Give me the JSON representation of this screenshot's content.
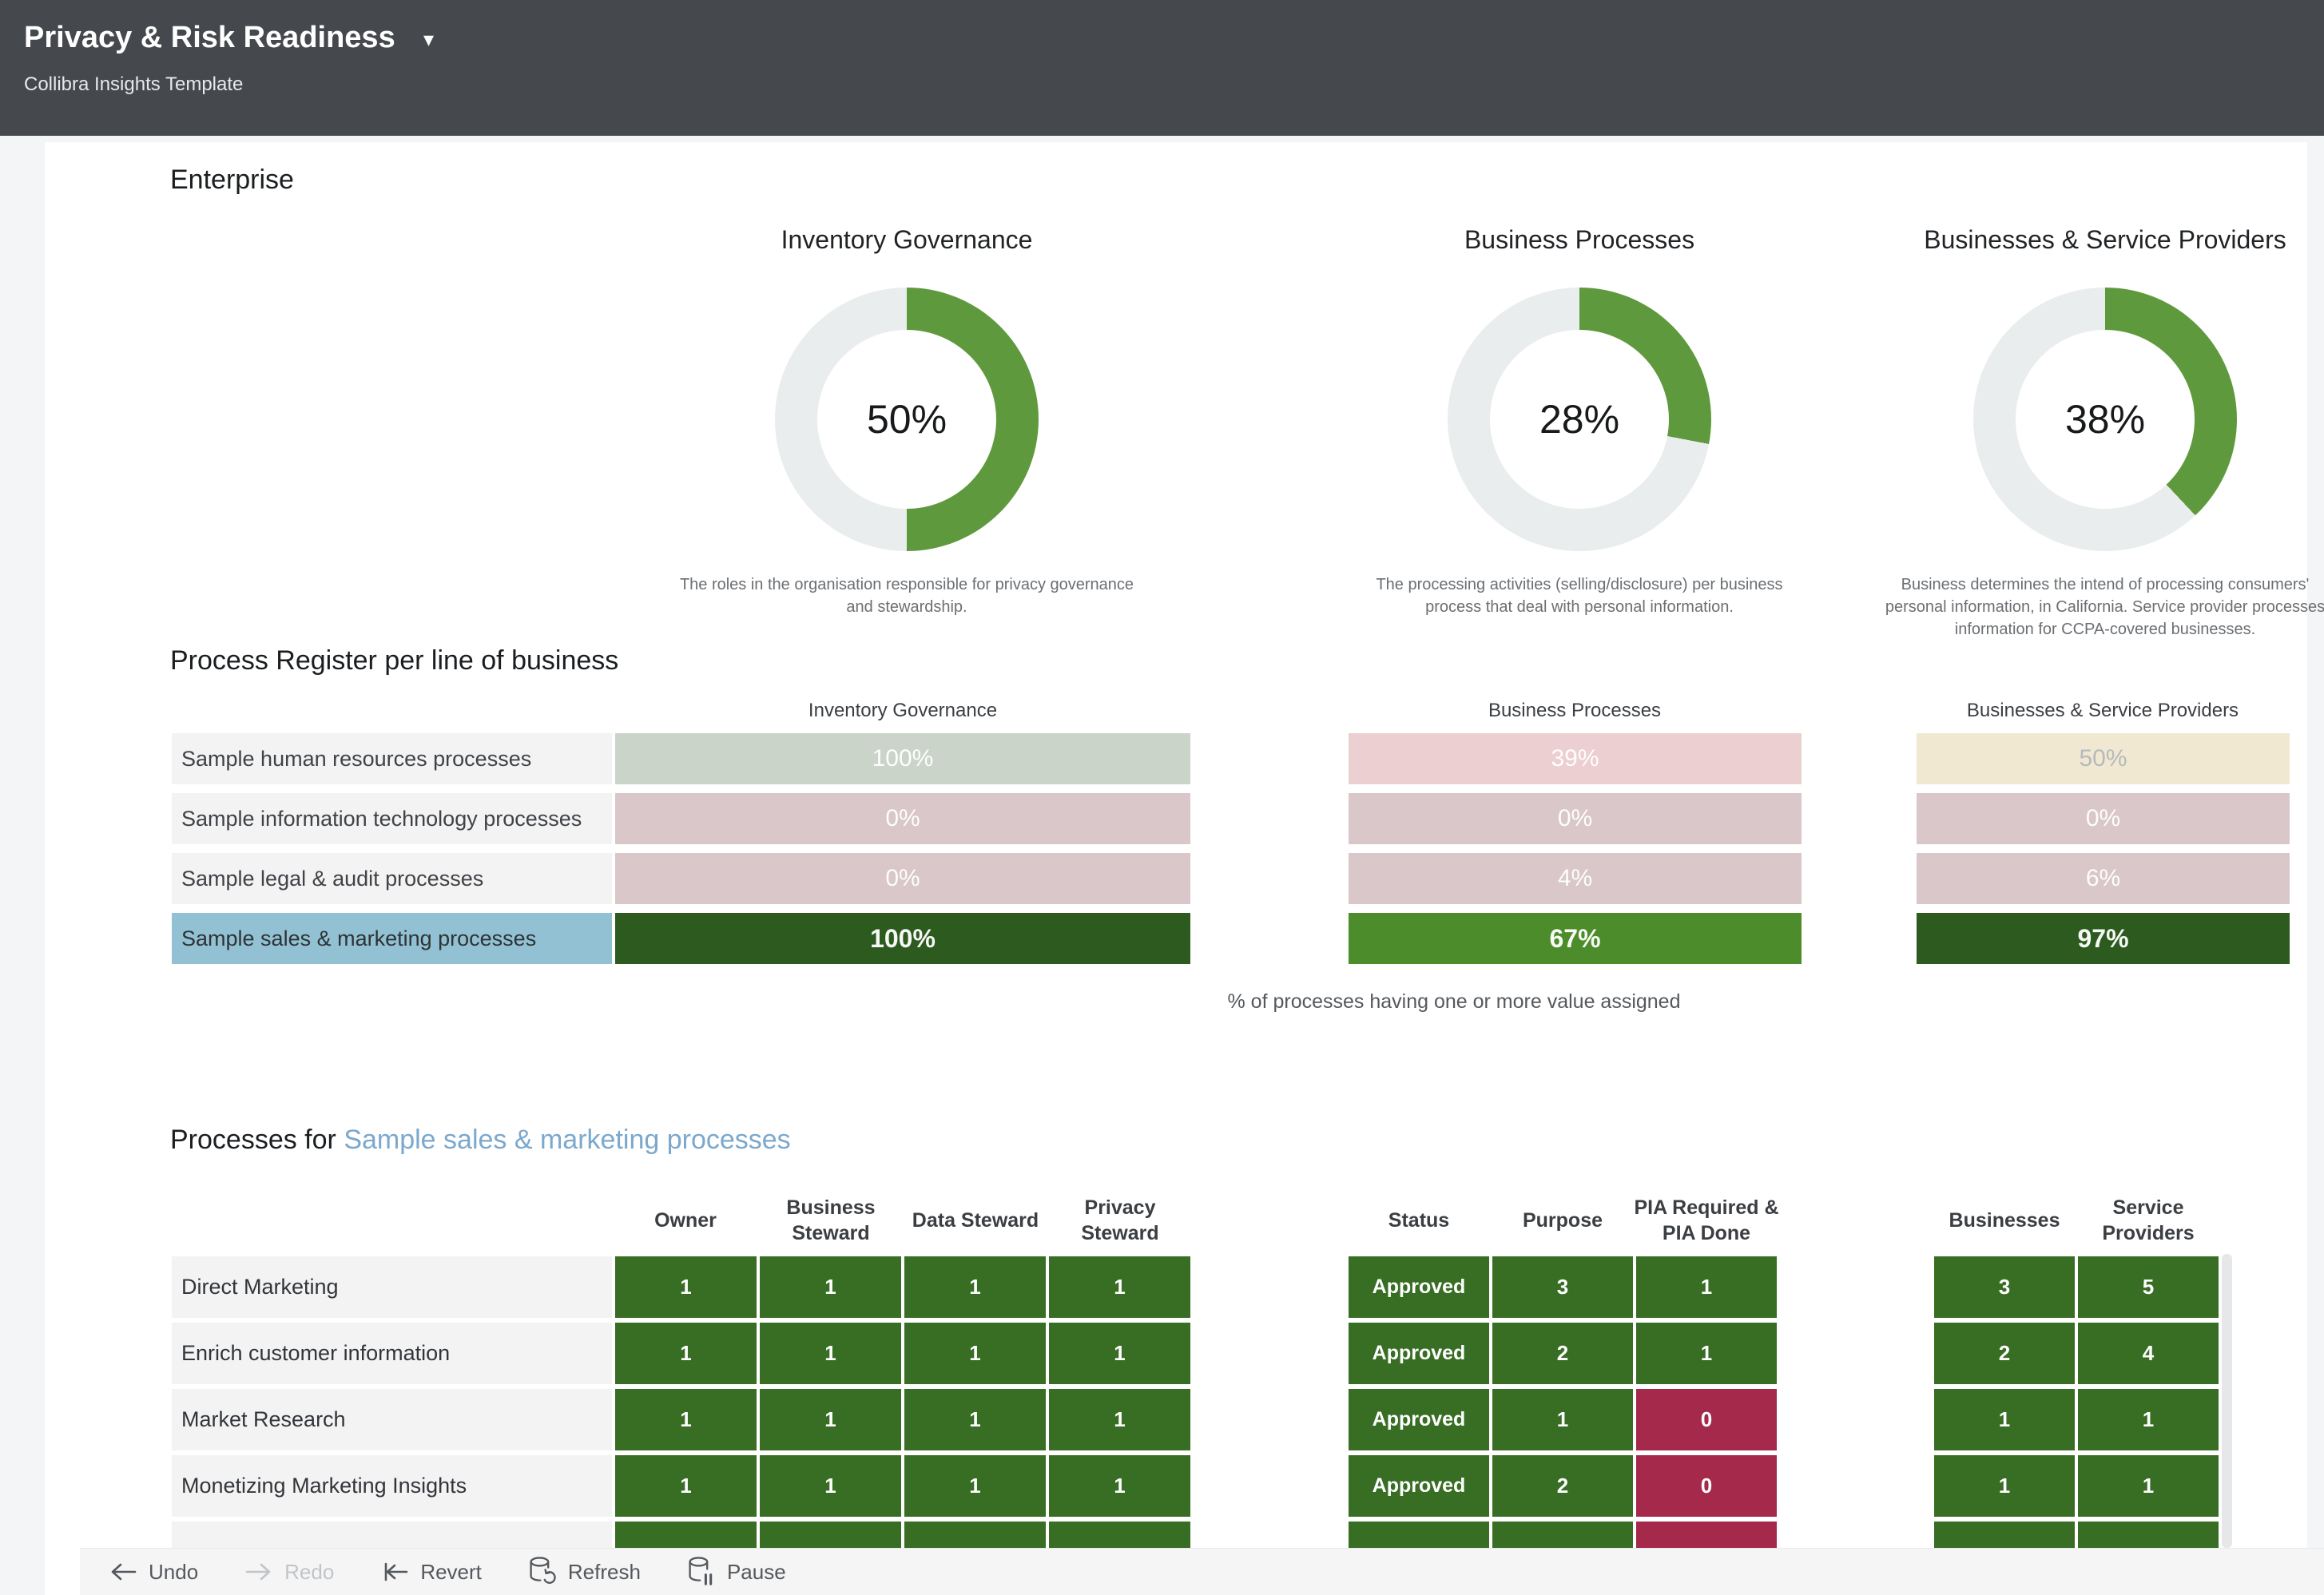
{
  "header": {
    "title": "Privacy & Risk Readiness",
    "menu_caret": "▾",
    "subtitle": "Collibra Insights Template"
  },
  "enterprise": {
    "heading": "Enterprise"
  },
  "donuts": [
    {
      "title": "Inventory Governance",
      "percent": 50,
      "percent_label": "50%",
      "description": "The roles in the organisation responsible for privacy governance and stewardship."
    },
    {
      "title": "Business Processes",
      "percent": 28,
      "percent_label": "28%",
      "description": "The processing activities (selling/disclosure) per business process that deal with personal information."
    },
    {
      "title": "Businesses & Service Providers",
      "percent": 38,
      "percent_label": "38%",
      "description": "Business determines the intend of processing consumers' personal information, in California. Service provider processes information for CCPA-covered businesses."
    }
  ],
  "process_register": {
    "heading": "Process Register per line of business",
    "columns": [
      "Inventory Governance",
      "Business Processes",
      "Businesses & Service Providers"
    ],
    "rows": [
      {
        "label": "Sample human resources processes",
        "selected": false,
        "values": [
          "100%",
          "39%",
          "50%"
        ],
        "tones": [
          "sage",
          "pink_light",
          "cream"
        ]
      },
      {
        "label": "Sample information technology processes",
        "selected": false,
        "values": [
          "0%",
          "0%",
          "0%"
        ],
        "tones": [
          "pink",
          "pink",
          "pink"
        ]
      },
      {
        "label": "Sample legal & audit processes",
        "selected": false,
        "values": [
          "0%",
          "4%",
          "6%"
        ],
        "tones": [
          "pink",
          "pink",
          "pink"
        ]
      },
      {
        "label": "Sample sales & marketing processes",
        "selected": true,
        "values": [
          "100%",
          "67%",
          "97%"
        ],
        "tones": [
          "green_dark",
          "green_bright",
          "green_dark"
        ]
      }
    ],
    "caption": "% of processes having one or more value assigned"
  },
  "processes": {
    "heading_prefix": "Processes for ",
    "heading_link": "Sample sales & marketing processes",
    "steward_columns": [
      "Owner",
      "Business Steward",
      "Data Steward",
      "Privacy Steward"
    ],
    "status_columns": [
      "Status",
      "Purpose",
      "PIA Required & PIA Done"
    ],
    "party_columns": [
      "Businesses",
      "Service Providers"
    ],
    "rows": [
      {
        "label": "Direct Marketing",
        "stewards": [
          "1",
          "1",
          "1",
          "1"
        ],
        "status": "Approved",
        "purpose": "3",
        "pia": "1",
        "pia_alert": false,
        "businesses": "3",
        "service_providers": "5",
        "partial": false
      },
      {
        "label": "Enrich customer information",
        "stewards": [
          "1",
          "1",
          "1",
          "1"
        ],
        "status": "Approved",
        "purpose": "2",
        "pia": "1",
        "pia_alert": false,
        "businesses": "2",
        "service_providers": "4",
        "partial": false
      },
      {
        "label": "Market Research",
        "stewards": [
          "1",
          "1",
          "1",
          "1"
        ],
        "status": "Approved",
        "purpose": "1",
        "pia": "0",
        "pia_alert": true,
        "businesses": "1",
        "service_providers": "1",
        "partial": false
      },
      {
        "label": "Monetizing Marketing Insights",
        "stewards": [
          "1",
          "1",
          "1",
          "1"
        ],
        "status": "Approved",
        "purpose": "2",
        "pia": "0",
        "pia_alert": true,
        "businesses": "1",
        "service_providers": "1",
        "partial": false
      },
      {
        "label": "",
        "stewards": [
          "",
          "",
          "",
          ""
        ],
        "status": "",
        "purpose": "",
        "pia": "",
        "pia_alert": true,
        "businesses": "",
        "service_providers": "",
        "partial": true
      }
    ]
  },
  "toolbar": {
    "items": [
      {
        "label": "Undo",
        "icon": "arrow-left-icon",
        "disabled": false
      },
      {
        "label": "Redo",
        "icon": "arrow-right-icon",
        "disabled": true
      },
      {
        "label": "Revert",
        "icon": "arrow-bar-left-icon",
        "disabled": false
      },
      {
        "label": "Refresh",
        "icon": "database-refresh-icon",
        "disabled": false
      },
      {
        "label": "Pause",
        "icon": "database-pause-icon",
        "disabled": false
      }
    ]
  },
  "chart_data": [
    {
      "type": "pie",
      "title": "Inventory Governance",
      "values": [
        50,
        50
      ],
      "unit": "%",
      "value": 50
    },
    {
      "type": "pie",
      "title": "Business Processes",
      "values": [
        28,
        72
      ],
      "unit": "%",
      "value": 28
    },
    {
      "type": "pie",
      "title": "Businesses & Service Providers",
      "values": [
        38,
        62
      ],
      "unit": "%",
      "value": 38
    },
    {
      "type": "heatmap",
      "title": "Process Register per line of business",
      "categories": [
        "Sample human resources processes",
        "Sample information technology processes",
        "Sample legal & audit processes",
        "Sample sales & marketing processes"
      ],
      "series": [
        {
          "name": "Inventory Governance",
          "values": [
            100,
            0,
            0,
            100
          ]
        },
        {
          "name": "Business Processes",
          "values": [
            39,
            0,
            4,
            67
          ]
        },
        {
          "name": "Businesses & Service Providers",
          "values": [
            50,
            0,
            6,
            97
          ]
        }
      ],
      "unit": "%"
    },
    {
      "type": "table",
      "title": "Processes for Sample sales & marketing processes",
      "categories": [
        "Direct Marketing",
        "Enrich customer information",
        "Market Research",
        "Monetizing Marketing Insights"
      ],
      "series": [
        {
          "name": "Owner",
          "values": [
            1,
            1,
            1,
            1
          ]
        },
        {
          "name": "Business Steward",
          "values": [
            1,
            1,
            1,
            1
          ]
        },
        {
          "name": "Data Steward",
          "values": [
            1,
            1,
            1,
            1
          ]
        },
        {
          "name": "Privacy Steward",
          "values": [
            1,
            1,
            1,
            1
          ]
        },
        {
          "name": "Status",
          "values": [
            "Approved",
            "Approved",
            "Approved",
            "Approved"
          ]
        },
        {
          "name": "Purpose",
          "values": [
            3,
            2,
            1,
            2
          ]
        },
        {
          "name": "PIA Required & PIA Done",
          "values": [
            1,
            1,
            0,
            0
          ]
        },
        {
          "name": "Businesses",
          "values": [
            3,
            2,
            1,
            1
          ]
        },
        {
          "name": "Service Providers",
          "values": [
            5,
            4,
            1,
            1
          ]
        }
      ]
    }
  ],
  "colors": {
    "header_bg": "#45494d",
    "page_bg": "#f4f5f6",
    "card_bg": "#ffffff",
    "donut_green": "#5f993d",
    "donut_track": "#e9edee",
    "sage": "#cbd4c9",
    "pink_light": "#eccfd0",
    "pink": "#d9c7ca",
    "cream": "#f0e8d1",
    "green_bright": "#4c8c2a",
    "green_dark": "#2d5a1e",
    "cell_green": "#386d24",
    "cell_red": "#a5294a",
    "selected_blue": "#92c1d3",
    "row_label_bg": "#f3f3f4",
    "cream_text": "#b6babd",
    "link_blue": "#7ba8cd"
  }
}
